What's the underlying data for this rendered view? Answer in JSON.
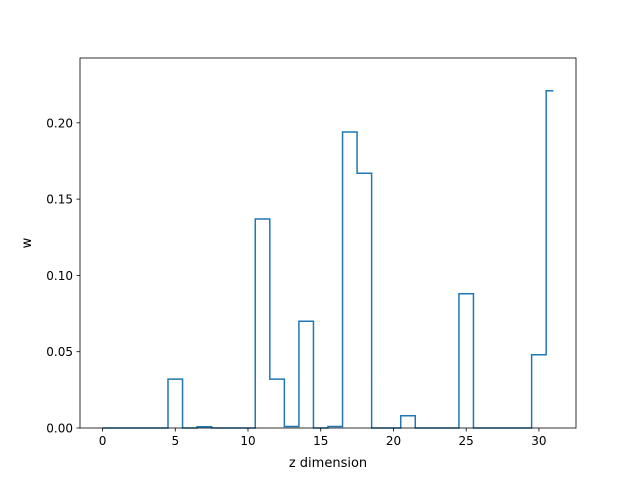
{
  "chart_data": {
    "type": "line",
    "drawstyle": "steps-mid",
    "title": "",
    "xlabel": "z dimension",
    "ylabel": "w",
    "xlim": [
      -1.55,
      32.55
    ],
    "ylim": [
      0,
      0.2425
    ],
    "xticks": [
      0,
      5,
      10,
      15,
      20,
      25,
      30
    ],
    "yticks": [
      0.0,
      0.05,
      0.1,
      0.15,
      0.2
    ],
    "ytick_labels": [
      "0.00",
      "0.05",
      "0.10",
      "0.15",
      "0.20"
    ],
    "grid": false,
    "line_color": "#1f77b4",
    "x": [
      0,
      1,
      2,
      3,
      4,
      5,
      6,
      7,
      8,
      9,
      10,
      11,
      12,
      13,
      14,
      15,
      16,
      17,
      18,
      19,
      20,
      21,
      22,
      23,
      24,
      25,
      26,
      27,
      28,
      29,
      30,
      31
    ],
    "values": [
      0,
      0,
      0,
      0,
      0,
      0.032,
      0,
      0.0008,
      0,
      0,
      0,
      0.137,
      0.032,
      0.001,
      0.07,
      0,
      0.001,
      0.194,
      0.167,
      0,
      0,
      0.008,
      0,
      0,
      0,
      0.088,
      0,
      0,
      0,
      0,
      0.048,
      0.221
    ]
  }
}
